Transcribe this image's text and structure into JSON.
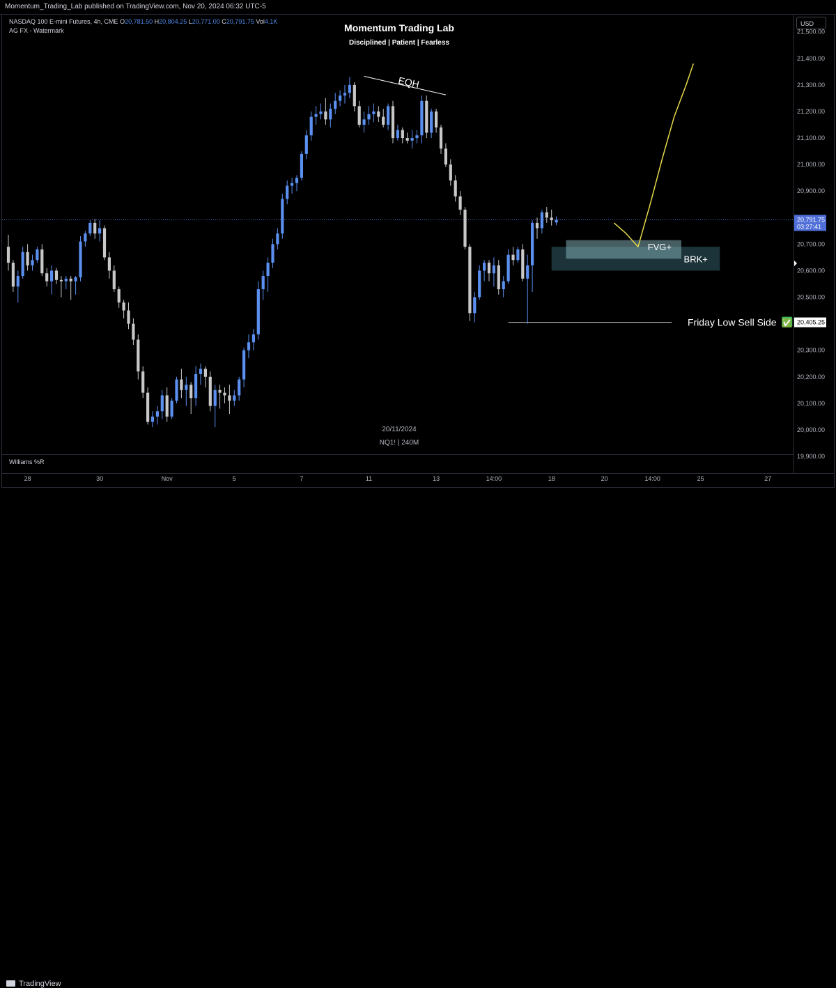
{
  "header": {
    "published_text": "Momentum_Trading_Lab published on TradingView.com, Nov 20, 2024 06:32 UTC-5"
  },
  "legend": {
    "instrument": "NASDAQ 100 E-mini Futures, 4h, CME",
    "open_label": "O",
    "open": "20,781.50",
    "high_label": "H",
    "high": "20,804.25",
    "low_label": "L",
    "low": "20,771.00",
    "close_label": "C",
    "close": "20,791.75",
    "vol_label": "Vol",
    "vol": "4.1K",
    "watermark_line": "AG FX - Watermark"
  },
  "branding": {
    "title": "Momentum Trading Lab",
    "subtitle": "Disciplined | Patient | Fearless",
    "date": "20/11/2024",
    "symbol_line": "NQ1! | 240M"
  },
  "currency_button": "USD",
  "indicator_pane": "Williams %R",
  "footer": {
    "logo_text": "TradingView"
  },
  "colors": {
    "background": "#000000",
    "bull": "#5b8ff0",
    "bear": "#c8c8c8",
    "zone": "#7fa9b3",
    "projection": "#e6d94a",
    "label_bg": "#ffffff",
    "check": "#3cc05a"
  },
  "chart_data": {
    "type": "candlestick",
    "symbol": "NQ1!",
    "interval": "240",
    "ylim": [
      19850,
      21560
    ],
    "y_ticks": [
      19900,
      20000,
      20100,
      20200,
      20300,
      20400,
      20500,
      20600,
      20700,
      20800,
      20900,
      21000,
      21100,
      21200,
      21300,
      21400,
      21500
    ],
    "y_tick_labels": [
      "19,900.00",
      "20,000.00",
      "20,100.00",
      "20,200.00",
      "20,300.00",
      "20,400.00",
      "20,500.00",
      "20,600.00",
      "20,700.00",
      "20,800.00",
      "20,900.00",
      "21,000.00",
      "21,100.00",
      "21,200.00",
      "21,300.00",
      "21,400.00",
      "21,500.00"
    ],
    "x_labels": [
      "28",
      "30",
      "Nov",
      "5",
      "7",
      "11",
      "13",
      "14:00",
      "18",
      "20",
      "14:00",
      "25",
      "27"
    ],
    "x_label_index": [
      4,
      19,
      33,
      47,
      61,
      75,
      89,
      101,
      113,
      124,
      134,
      144,
      158
    ],
    "candles": [
      [
        20690,
        20735,
        20600,
        20630
      ],
      [
        20630,
        20640,
        20520,
        20540
      ],
      [
        20540,
        20600,
        20480,
        20580
      ],
      [
        20580,
        20690,
        20570,
        20670
      ],
      [
        20670,
        20700,
        20600,
        20620
      ],
      [
        20620,
        20660,
        20600,
        20640
      ],
      [
        20640,
        20690,
        20630,
        20680
      ],
      [
        20680,
        20700,
        20580,
        20590
      ],
      [
        20590,
        20610,
        20540,
        20560
      ],
      [
        20560,
        20620,
        20510,
        20600
      ],
      [
        20600,
        20610,
        20550,
        20565
      ],
      [
        20565,
        20580,
        20500,
        20560
      ],
      [
        20560,
        20580,
        20530,
        20570
      ],
      [
        20570,
        20580,
        20490,
        20560
      ],
      [
        20560,
        20580,
        20510,
        20575
      ],
      [
        20575,
        20730,
        20560,
        20710
      ],
      [
        20710,
        20750,
        20690,
        20740
      ],
      [
        20740,
        20790,
        20730,
        20780
      ],
      [
        20780,
        20795,
        20720,
        20740
      ],
      [
        20740,
        20790,
        20710,
        20760
      ],
      [
        20760,
        20770,
        20640,
        20650
      ],
      [
        20650,
        20670,
        20570,
        20600
      ],
      [
        20600,
        20620,
        20520,
        20530
      ],
      [
        20530,
        20540,
        20460,
        20480
      ],
      [
        20480,
        20490,
        20420,
        20450
      ],
      [
        20450,
        20480,
        20380,
        20400
      ],
      [
        20400,
        20420,
        20320,
        20340
      ],
      [
        20340,
        20360,
        20190,
        20220
      ],
      [
        20220,
        20240,
        20120,
        20140
      ],
      [
        20140,
        20160,
        20020,
        20030
      ],
      [
        20030,
        20070,
        20010,
        20050
      ],
      [
        20050,
        20090,
        20020,
        20070
      ],
      [
        20070,
        20150,
        20040,
        20130
      ],
      [
        20130,
        20160,
        20030,
        20050
      ],
      [
        20050,
        20120,
        20040,
        20110
      ],
      [
        20110,
        20200,
        20100,
        20190
      ],
      [
        20190,
        20230,
        20120,
        20150
      ],
      [
        20150,
        20200,
        20090,
        20170
      ],
      [
        20170,
        20180,
        20060,
        20120
      ],
      [
        20120,
        20240,
        20090,
        20210
      ],
      [
        20210,
        20250,
        20170,
        20230
      ],
      [
        20230,
        20240,
        20160,
        20200
      ],
      [
        20200,
        20220,
        20070,
        20090
      ],
      [
        20090,
        20170,
        20010,
        20150
      ],
      [
        20150,
        20170,
        20080,
        20140
      ],
      [
        20140,
        20160,
        20100,
        20130
      ],
      [
        20130,
        20170,
        20060,
        20110
      ],
      [
        20110,
        20150,
        20090,
        20130
      ],
      [
        20130,
        20200,
        20110,
        20190
      ],
      [
        20190,
        20310,
        20160,
        20300
      ],
      [
        20300,
        20360,
        20270,
        20330
      ],
      [
        20330,
        20380,
        20300,
        20360
      ],
      [
        20360,
        20560,
        20340,
        20530
      ],
      [
        20530,
        20600,
        20490,
        20580
      ],
      [
        20580,
        20650,
        20520,
        20630
      ],
      [
        20630,
        20720,
        20610,
        20700
      ],
      [
        20700,
        20760,
        20680,
        20740
      ],
      [
        20740,
        20890,
        20720,
        20870
      ],
      [
        20870,
        20940,
        20850,
        20920
      ],
      [
        20920,
        20950,
        20890,
        20930
      ],
      [
        20930,
        20960,
        20900,
        20950
      ],
      [
        20950,
        21050,
        20940,
        21040
      ],
      [
        21040,
        21130,
        21020,
        21110
      ],
      [
        21110,
        21200,
        21090,
        21180
      ],
      [
        21180,
        21220,
        21150,
        21190
      ],
      [
        21190,
        21230,
        21170,
        21200
      ],
      [
        21200,
        21250,
        21150,
        21170
      ],
      [
        21170,
        21230,
        21140,
        21210
      ],
      [
        21210,
        21270,
        21190,
        21240
      ],
      [
        21240,
        21280,
        21220,
        21260
      ],
      [
        21260,
        21300,
        21230,
        21270
      ],
      [
        21270,
        21330,
        21250,
        21300
      ],
      [
        21300,
        21310,
        21200,
        21220
      ],
      [
        21220,
        21240,
        21140,
        21150
      ],
      [
        21150,
        21200,
        21120,
        21170
      ],
      [
        21170,
        21220,
        21150,
        21190
      ],
      [
        21190,
        21230,
        21160,
        21200
      ],
      [
        21200,
        21220,
        21160,
        21180
      ],
      [
        21180,
        21210,
        21140,
        21150
      ],
      [
        21150,
        21230,
        21130,
        21220
      ],
      [
        21220,
        21240,
        21080,
        21100
      ],
      [
        21100,
        21150,
        21090,
        21130
      ],
      [
        21130,
        21140,
        21080,
        21100
      ],
      [
        21100,
        21120,
        21080,
        21090
      ],
      [
        21090,
        21130,
        21060,
        21100
      ],
      [
        21100,
        21130,
        21080,
        21110
      ],
      [
        21110,
        21260,
        21080,
        21240
      ],
      [
        21240,
        21260,
        21100,
        21120
      ],
      [
        21120,
        21210,
        21100,
        21200
      ],
      [
        21200,
        21210,
        21120,
        21140
      ],
      [
        21140,
        21150,
        21040,
        21060
      ],
      [
        21060,
        21080,
        20990,
        21000
      ],
      [
        21000,
        21020,
        20920,
        20940
      ],
      [
        20940,
        20960,
        20860,
        20880
      ],
      [
        20880,
        20900,
        20810,
        20830
      ],
      [
        20830,
        20840,
        20680,
        20690
      ],
      [
        20690,
        20700,
        20410,
        20440
      ],
      [
        20440,
        20520,
        20405,
        20500
      ],
      [
        20500,
        20620,
        20490,
        20600
      ],
      [
        20600,
        20640,
        20560,
        20630
      ],
      [
        20630,
        20640,
        20560,
        20590
      ],
      [
        20590,
        20650,
        20540,
        20620
      ],
      [
        20620,
        20640,
        20510,
        20530
      ],
      [
        20530,
        20580,
        20500,
        20560
      ],
      [
        20560,
        20680,
        20550,
        20660
      ],
      [
        20660,
        20690,
        20620,
        20640
      ],
      [
        20640,
        20690,
        20630,
        20680
      ],
      [
        20680,
        20700,
        20560,
        20570
      ],
      [
        20570,
        20660,
        20400,
        20620
      ],
      [
        20620,
        20790,
        20520,
        20780
      ],
      [
        20780,
        20800,
        20720,
        20760
      ],
      [
        20760,
        20830,
        20740,
        20820
      ],
      [
        20820,
        20840,
        20780,
        20800
      ],
      [
        20800,
        20830,
        20770,
        20790
      ],
      [
        20781.5,
        20804.25,
        20771,
        20791.75
      ]
    ],
    "annotations": {
      "eqh_label": "EQH",
      "fvg_label": "FVG+",
      "brk_label": "BRK+",
      "friday_low_label": "Friday Low Sell Side",
      "friday_low_marker": "✅",
      "current_price": "20,791.75",
      "countdown": "03:27:41",
      "friday_low_price": "20,405.25",
      "friday_low_value": 20405.25,
      "fvg_zone": {
        "top": 20715,
        "bottom": 20645
      },
      "brk_zone": {
        "top": 20690,
        "bottom": 20600
      },
      "projection_values": [
        20780,
        20740,
        20690,
        20850,
        21020,
        21180,
        21300,
        21380
      ]
    }
  }
}
